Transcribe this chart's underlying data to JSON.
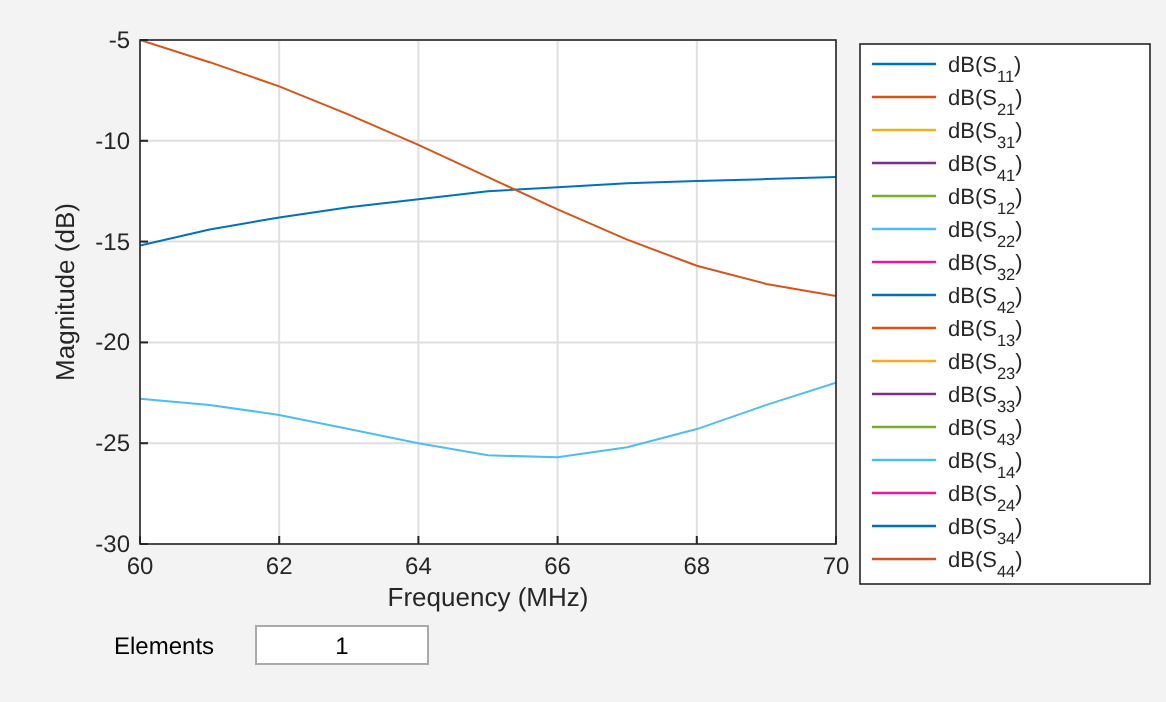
{
  "chart_data": {
    "type": "line",
    "xlabel": "Frequency (MHz)",
    "ylabel": "Magnitude (dB)",
    "x": [
      60,
      61,
      62,
      63,
      64,
      65,
      66,
      67,
      68,
      69,
      70
    ],
    "xlim": [
      60,
      70
    ],
    "xticks": [
      60,
      62,
      64,
      66,
      68,
      70
    ],
    "ylim": [
      -30,
      -5
    ],
    "yticks": [
      -30,
      -25,
      -20,
      -15,
      -10,
      -5
    ],
    "grid": true,
    "legend": "right",
    "annotations": [
      "Elements",
      "1"
    ],
    "series": [
      {
        "name": "dB(S$_{11}$)",
        "color": "#0072bd",
        "values": [
          null,
          null,
          null,
          null,
          null,
          null,
          null,
          null,
          null,
          null,
          null
        ]
      },
      {
        "name": "dB(S$_{21}$)",
        "color": "#d95319",
        "values": [
          null,
          null,
          null,
          null,
          null,
          null,
          null,
          null,
          null,
          null,
          null
        ]
      },
      {
        "name": "dB(S$_{31}$)",
        "color": "#edb120",
        "values": [
          null,
          null,
          null,
          null,
          null,
          null,
          null,
          null,
          null,
          null,
          null
        ]
      },
      {
        "name": "dB(S$_{41}$)",
        "color": "#7e2f8e",
        "values": [
          null,
          null,
          null,
          null,
          null,
          null,
          null,
          null,
          null,
          null,
          null
        ]
      },
      {
        "name": "dB(S$_{12}$)",
        "color": "#77ac30",
        "values": [
          null,
          null,
          null,
          null,
          null,
          null,
          null,
          null,
          null,
          null,
          null
        ]
      },
      {
        "name": "dB(S$_{22}$)",
        "color": "#4dbeee",
        "values": [
          null,
          null,
          null,
          null,
          null,
          null,
          null,
          null,
          null,
          null,
          null
        ]
      },
      {
        "name": "dB(S$_{32}$)",
        "color": "#e6199a",
        "values": [
          null,
          null,
          null,
          null,
          null,
          null,
          null,
          null,
          null,
          null,
          null
        ]
      },
      {
        "name": "dB(S$_{42}$)",
        "color": "#0072bd",
        "values": [
          null,
          null,
          null,
          null,
          null,
          null,
          null,
          null,
          null,
          null,
          null
        ]
      },
      {
        "name": "dB(S$_{13}$)",
        "color": "#d95319",
        "values": [
          null,
          null,
          null,
          null,
          null,
          null,
          null,
          null,
          null,
          null,
          null
        ]
      },
      {
        "name": "dB(S$_{23}$)",
        "color": "#edb120",
        "values": [
          null,
          null,
          null,
          null,
          null,
          null,
          null,
          null,
          null,
          null,
          null
        ]
      },
      {
        "name": "dB(S$_{33}$)",
        "color": "#7e2f8e",
        "values": [
          null,
          null,
          null,
          null,
          null,
          null,
          null,
          null,
          null,
          null,
          null
        ]
      },
      {
        "name": "dB(S$_{43}$)",
        "color": "#77ac30",
        "values": [
          null,
          null,
          null,
          null,
          null,
          null,
          null,
          null,
          null,
          null,
          null
        ]
      },
      {
        "name": "dB(S$_{14}$)",
        "color": "#4dbeee",
        "values": [
          -22.8,
          -23.1,
          -23.6,
          -24.3,
          -25.0,
          -25.6,
          -25.7,
          -25.2,
          -24.3,
          -23.1,
          -22.0
        ]
      },
      {
        "name": "dB(S$_{24}$)",
        "color": "#e6199a",
        "values": [
          null,
          null,
          null,
          null,
          null,
          null,
          null,
          null,
          null,
          null,
          null
        ]
      },
      {
        "name": "dB(S$_{34}$)",
        "color": "#0072bd",
        "values": [
          -15.2,
          -14.4,
          -13.8,
          -13.3,
          -12.9,
          -12.5,
          -12.3,
          -12.1,
          -12.0,
          -11.9,
          -11.8
        ]
      },
      {
        "name": "dB(S$_{44}$)",
        "color": "#d95319",
        "values": [
          -5.0,
          -6.1,
          -7.3,
          -8.7,
          -10.2,
          -11.8,
          -13.4,
          -14.9,
          -16.2,
          -17.1,
          -17.7
        ]
      }
    ]
  }
}
